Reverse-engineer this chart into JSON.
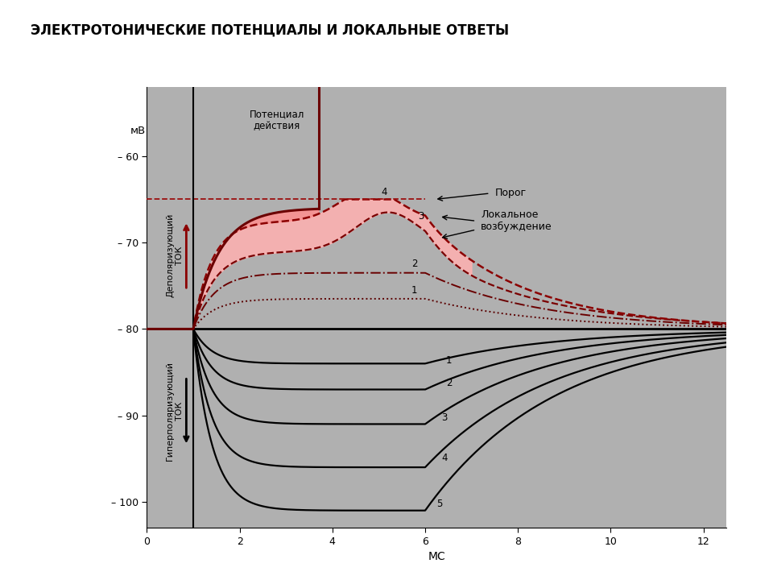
{
  "title": "ЭЛЕКТРОТОНИЧЕСКИЕ ПОТЕНЦИАЛЫ И ЛОКАЛЬНЫЕ ОТВЕТЫ",
  "xlabel": "МС",
  "ylabel": "мВ",
  "bg_color": "#b0b0b0",
  "xlim": [
    0,
    12.5
  ],
  "ylim": [
    -103,
    -52
  ],
  "resting_potential": -80,
  "threshold": -65,
  "x_ticks": [
    0,
    2,
    4,
    6,
    8,
    10,
    12
  ],
  "y_ticks": [
    -100,
    -90,
    -80,
    -70,
    -60
  ],
  "y_tick_labels": [
    "– 100",
    "– 90",
    "– 80",
    "– 70",
    "– 60"
  ],
  "stim_x": 1.0,
  "stim_end_x": 6.0,
  "depol_arrow_label": "Деполяризующий\nТОК",
  "hyperpol_arrow_label": "Гиперполяризующий\nТОК",
  "action_potential_label": "Потенциал\nдействия",
  "threshold_label": "Порог",
  "local_excitation_label": "Локальное\nвозбуждение"
}
